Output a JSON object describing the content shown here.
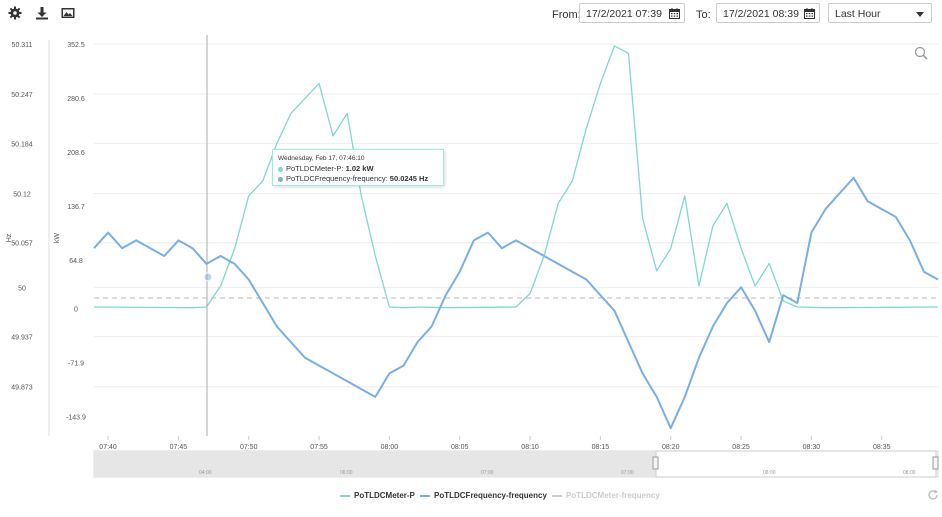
{
  "toolbar": {
    "settings_icon": "gear-icon",
    "download_icon": "download-icon",
    "image_icon": "image-icon"
  },
  "range": {
    "from_label": "From:",
    "from_value": "17/2/2021 07:39",
    "to_label": "To:",
    "to_value": "17/2/2021 08:39",
    "preset": "Last Hour"
  },
  "colors": {
    "power": "#7ed9d0",
    "frequency": "#7aaee6",
    "frequency_hidden": "#cccccc"
  },
  "tooltip": {
    "header": "Wednesday, Feb 17, 07:46:10",
    "line1_name": "PoTLDCMeter-P: ",
    "line1_value": "1.02 kW",
    "line2_name": "PoTLDCFrequency-frequency: ",
    "line2_value": "50.0245 Hz"
  },
  "legend": [
    {
      "name": "PoTLDCMeter-P",
      "color": "#7ed9d0"
    },
    {
      "name": "PoTLDCFrequency-frequency",
      "color": "#7aaee6"
    },
    {
      "name": "PoTLDCMeter-frequency",
      "color": "#cccccc",
      "hidden": true
    }
  ],
  "chart_data": {
    "type": "line",
    "x_start": "07:39",
    "x_end": "08:39",
    "x_ticks": [
      "07:40",
      "07:45",
      "07:50",
      "07:55",
      "08:00",
      "08:05",
      "08:10",
      "08:15",
      "08:20",
      "08:25",
      "08:30",
      "08:35"
    ],
    "y_left": {
      "label": "Hz",
      "min": 49.81,
      "max": 50.311,
      "ticks": [
        "50.311",
        "50.247",
        "50.184",
        "50.12",
        "50.057",
        "50",
        "49.937",
        "49.873"
      ],
      "tick_values": [
        50.311,
        50.247,
        50.184,
        50.12,
        50.057,
        50,
        49.937,
        49.873
      ]
    },
    "y_right": {
      "label": "kW",
      "min": -170,
      "max": 352.5,
      "ticks": [
        "352.5",
        "280.6",
        "208.6",
        "136.7",
        "64.8",
        "0",
        "-71.9",
        "-143.9"
      ],
      "tick_values": [
        352.5,
        280.6,
        208.6,
        136.7,
        64.8,
        0,
        -71.9,
        -143.9
      ]
    },
    "navigator_ticks": [
      "04:00",
      "06:00",
      "07:00",
      "07:00",
      "08:00",
      "08:00"
    ],
    "series": [
      {
        "name": "PoTLDCFrequency-frequency",
        "axis": "Hz",
        "x_minutes": [
          0,
          1,
          2,
          3,
          4,
          5,
          6,
          7,
          8,
          9,
          10,
          11,
          12,
          13,
          14,
          15,
          16,
          17,
          18,
          19,
          20,
          21,
          22,
          23,
          24,
          25,
          26,
          27,
          28,
          29,
          30,
          31,
          32,
          33,
          34,
          35,
          36,
          37,
          38,
          39,
          40,
          41,
          42,
          43,
          44,
          45,
          46,
          47,
          48,
          49,
          50,
          51,
          52,
          53,
          54,
          55,
          56,
          57,
          58,
          59,
          60
        ],
        "values": [
          50.05,
          50.07,
          50.05,
          50.06,
          50.05,
          50.04,
          50.06,
          50.05,
          50.03,
          50.04,
          50.03,
          50.01,
          49.98,
          49.95,
          49.93,
          49.91,
          49.9,
          49.89,
          49.88,
          49.87,
          49.86,
          49.89,
          49.9,
          49.93,
          49.95,
          49.99,
          50.02,
          50.06,
          50.07,
          50.05,
          50.06,
          50.05,
          50.04,
          50.03,
          50.02,
          50.01,
          49.99,
          49.97,
          49.93,
          49.89,
          49.86,
          49.82,
          49.86,
          49.91,
          49.95,
          49.98,
          50.0,
          49.97,
          49.93,
          49.99,
          49.98,
          50.07,
          50.1,
          50.12,
          50.14,
          50.11,
          50.1,
          50.09,
          50.06,
          50.02,
          50.01
        ]
      },
      {
        "name": "PoTLDCMeter-P",
        "axis": "kW",
        "x_minutes": [
          0,
          7,
          8,
          9,
          10,
          11,
          12,
          13,
          14,
          15,
          16,
          17,
          18,
          19,
          20,
          21,
          22,
          23,
          25,
          30,
          31,
          32,
          33,
          34,
          35,
          36,
          37,
          38,
          39,
          40,
          41,
          42,
          43,
          44,
          45,
          46,
          47,
          48,
          49,
          50,
          52,
          60
        ],
        "values": [
          2,
          1,
          2,
          30,
          80,
          150,
          170,
          220,
          260,
          280,
          300,
          230,
          260,
          150,
          70,
          2,
          1,
          2,
          1,
          2,
          20,
          70,
          140,
          170,
          240,
          300,
          350,
          340,
          120,
          50,
          80,
          150,
          30,
          110,
          140,
          80,
          30,
          60,
          10,
          2,
          1,
          2
        ]
      }
    ]
  }
}
